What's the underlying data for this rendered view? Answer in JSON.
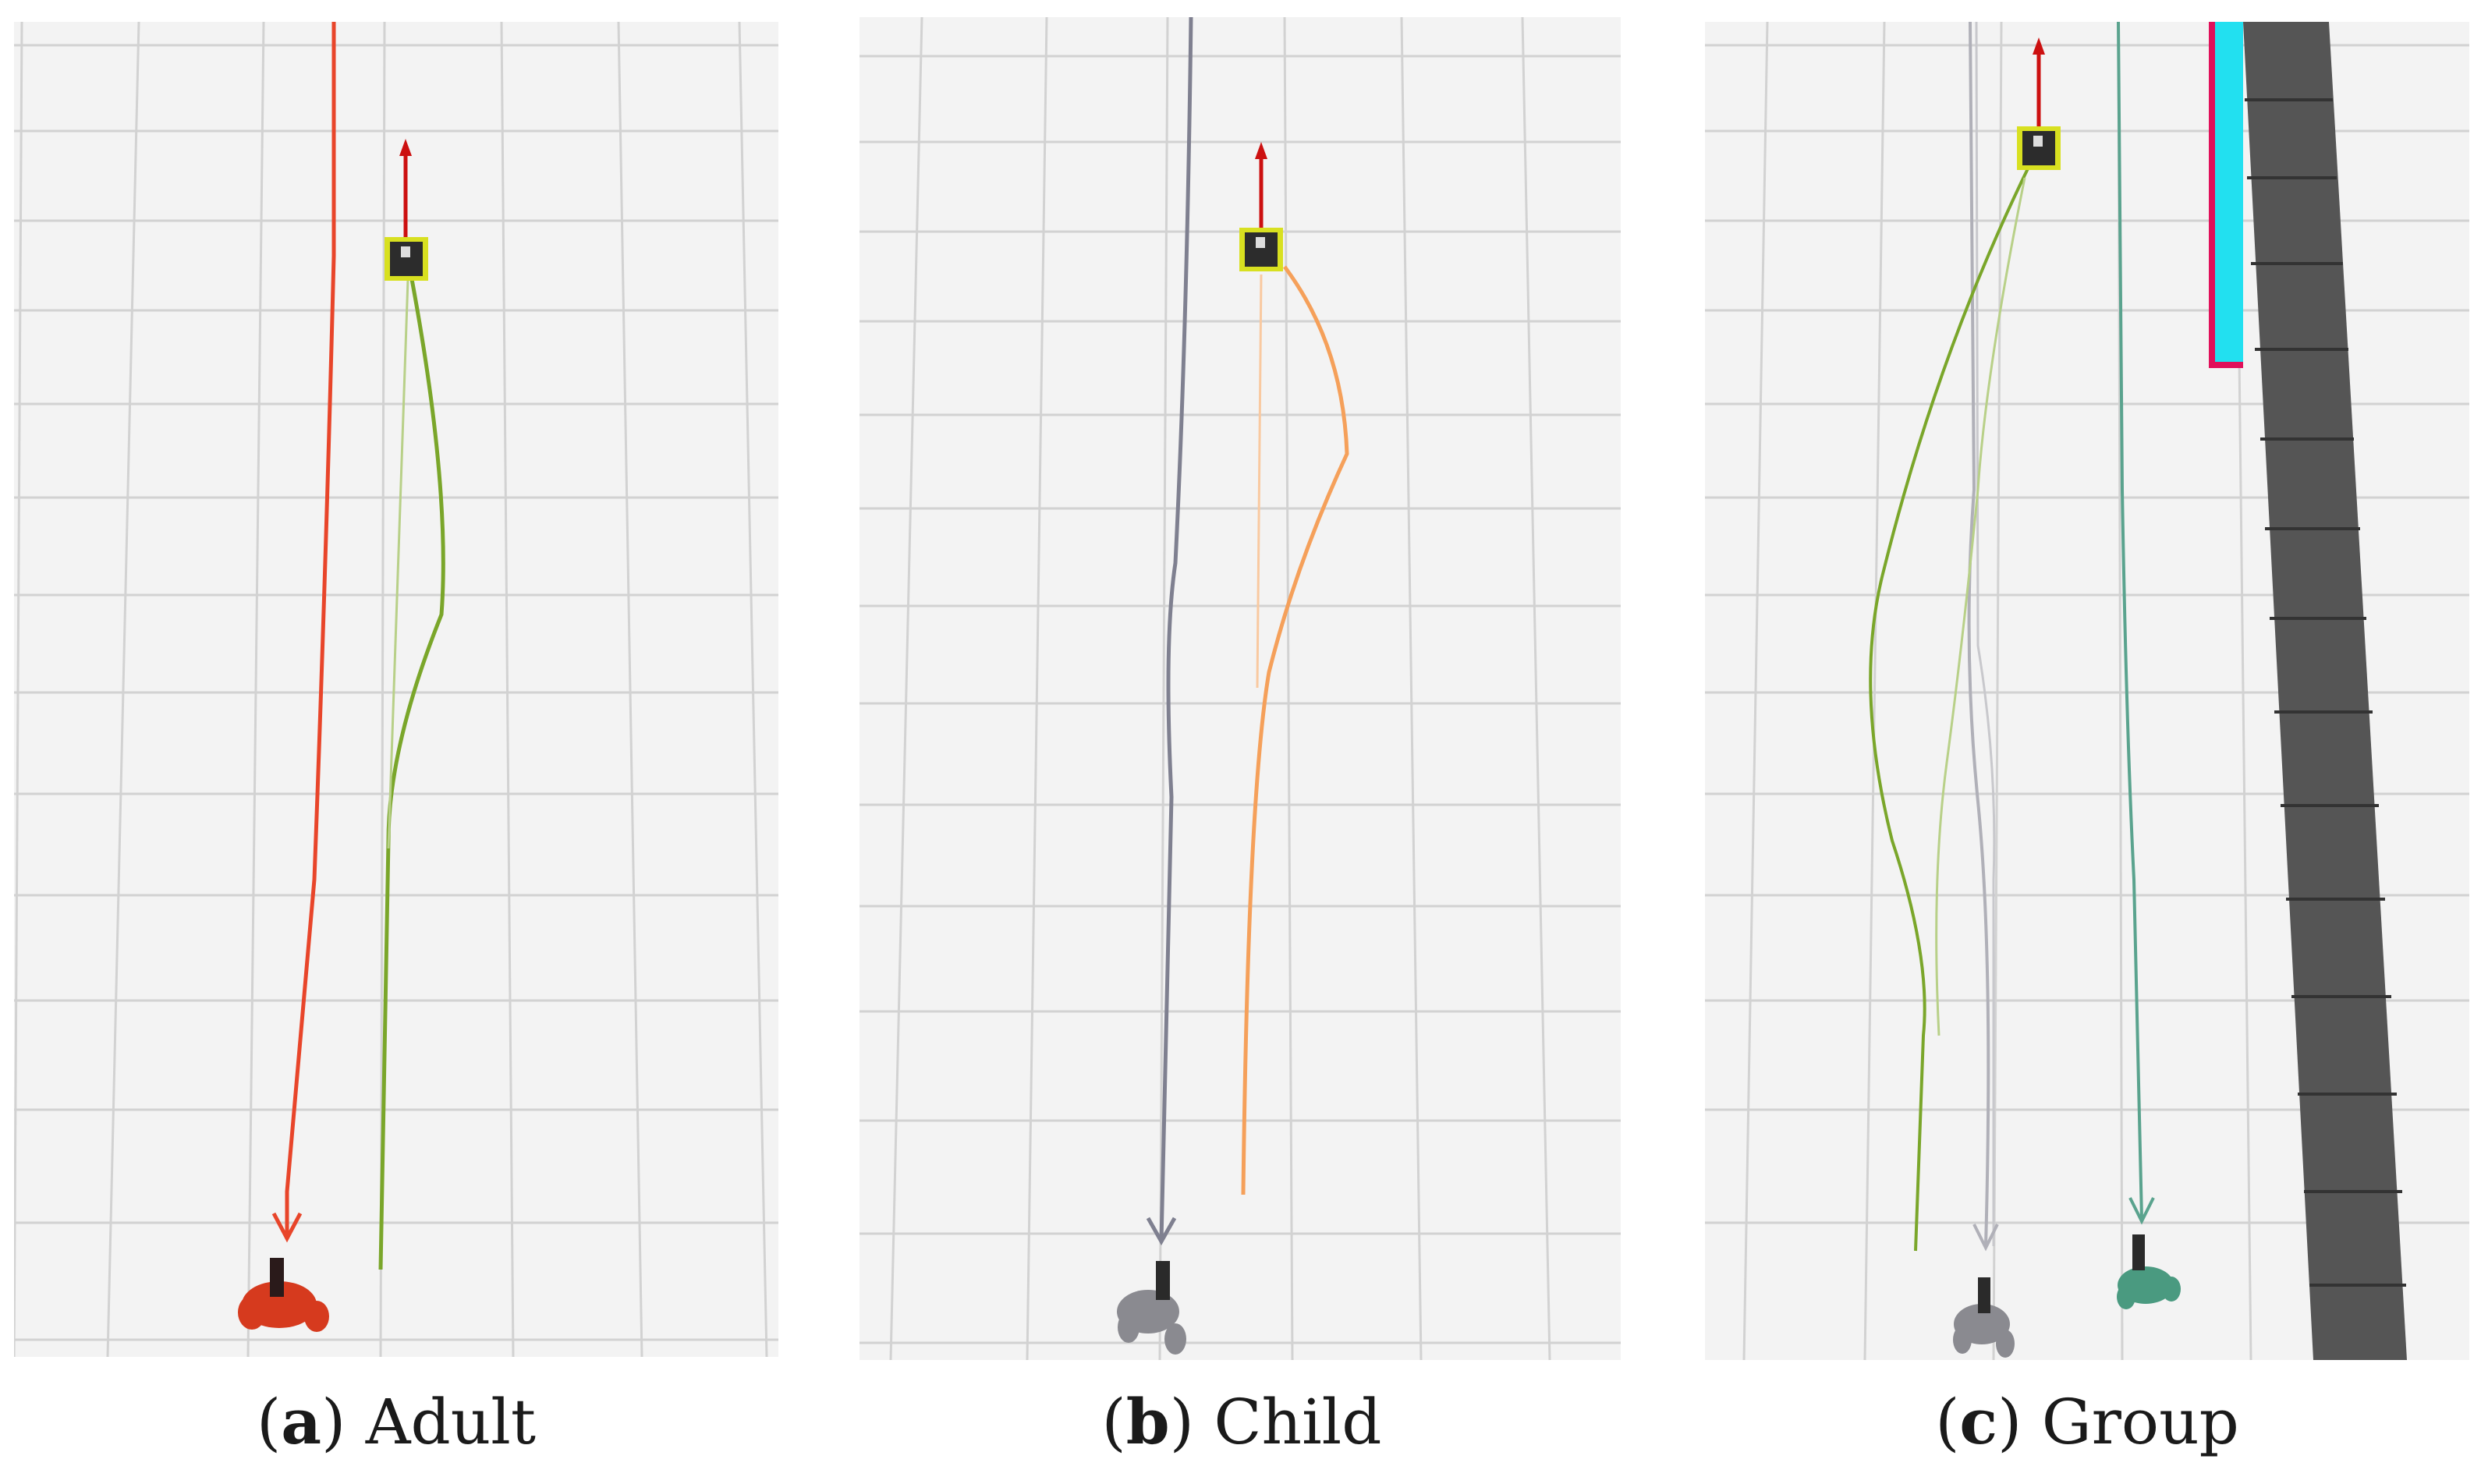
{
  "captions": [
    {
      "letter": "a",
      "text": "Adult"
    },
    {
      "letter": "b",
      "text": "Child"
    },
    {
      "letter": "c",
      "text": "Group"
    }
  ],
  "colors": {
    "background": "#f3f3f3",
    "grid": "#d2d2d2",
    "robot_path_green": "#7aa62a",
    "adult_path": "#e8452a",
    "child_path": "#7f8090",
    "child_robot_path": "#f5a05a",
    "group_person_gray": "#b0b0b8",
    "group_person_teal": "#5aa38e",
    "wall": "#555555",
    "obstacle_cyan": "#22e0f0",
    "obstacle_magenta": "#e0105a",
    "robot_body": "#2c2c2c",
    "robot_trim": "#d8e020",
    "heading_arrow": "#cc1010"
  },
  "icons": [
    "robot-icon",
    "heading-arrow-icon",
    "person-figure-icon",
    "goal-arrow-icon",
    "wall-obstacle-icon"
  ]
}
